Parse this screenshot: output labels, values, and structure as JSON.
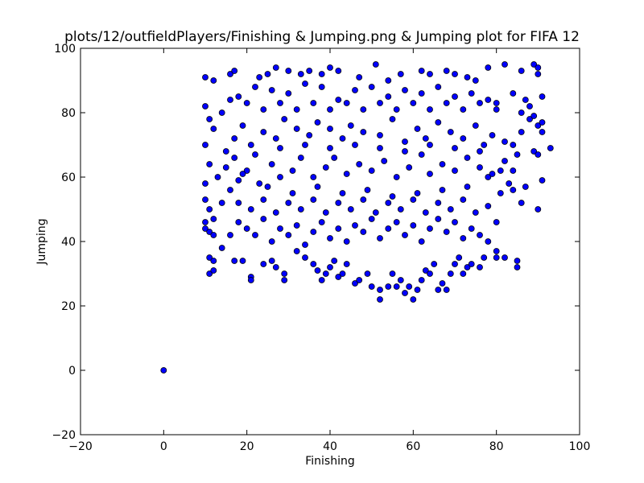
{
  "chart_data": {
    "type": "scatter",
    "title": "plots/12/outfieldPlayers/Finishing & Jumping.png & Jumping plot for FIFA 12",
    "xlabel": "Finishing",
    "ylabel": "Jumping",
    "xlim": [
      -20,
      100
    ],
    "ylim": [
      -20,
      100
    ],
    "xticks": [
      -20,
      0,
      20,
      40,
      60,
      80,
      100
    ],
    "yticks": [
      -20,
      0,
      20,
      40,
      60,
      80,
      100
    ],
    "xtick_labels": [
      "−20",
      "0",
      "20",
      "40",
      "60",
      "80",
      "100"
    ],
    "ytick_labels": [
      "−20",
      "0",
      "20",
      "40",
      "60",
      "80",
      "100"
    ],
    "grid": false,
    "marker_color": "#0000ff",
    "marker_edge_color": "#000000",
    "series": [
      {
        "points": [
          [
            0,
            0
          ],
          [
            10,
            91
          ],
          [
            12,
            90
          ],
          [
            16,
            92
          ],
          [
            17,
            93
          ],
          [
            23,
            91
          ],
          [
            25,
            92
          ],
          [
            27,
            94
          ],
          [
            30,
            93
          ],
          [
            33,
            92
          ],
          [
            35,
            93
          ],
          [
            38,
            92
          ],
          [
            40,
            94
          ],
          [
            42,
            93
          ],
          [
            47,
            91
          ],
          [
            51,
            95
          ],
          [
            54,
            90
          ],
          [
            57,
            92
          ],
          [
            62,
            93
          ],
          [
            64,
            92
          ],
          [
            68,
            93
          ],
          [
            70,
            92
          ],
          [
            73,
            91
          ],
          [
            75,
            90
          ],
          [
            78,
            94
          ],
          [
            82,
            95
          ],
          [
            86,
            93
          ],
          [
            89,
            95
          ],
          [
            90,
            94
          ],
          [
            90,
            92
          ],
          [
            10,
            82
          ],
          [
            11,
            78
          ],
          [
            12,
            75
          ],
          [
            14,
            80
          ],
          [
            18,
            85
          ],
          [
            22,
            88
          ],
          [
            26,
            87
          ],
          [
            30,
            86
          ],
          [
            34,
            89
          ],
          [
            38,
            88
          ],
          [
            42,
            84
          ],
          [
            46,
            87
          ],
          [
            50,
            88
          ],
          [
            54,
            85
          ],
          [
            58,
            87
          ],
          [
            62,
            86
          ],
          [
            66,
            88
          ],
          [
            70,
            85
          ],
          [
            74,
            86
          ],
          [
            78,
            84
          ],
          [
            80,
            83
          ],
          [
            84,
            86
          ],
          [
            86,
            80
          ],
          [
            88,
            78
          ],
          [
            91,
            74
          ],
          [
            90,
            76
          ],
          [
            93,
            69
          ],
          [
            91,
            85
          ],
          [
            10,
            70
          ],
          [
            11,
            64
          ],
          [
            13,
            60
          ],
          [
            15,
            68
          ],
          [
            17,
            72
          ],
          [
            19,
            76
          ],
          [
            21,
            70
          ],
          [
            24,
            74
          ],
          [
            27,
            72
          ],
          [
            29,
            78
          ],
          [
            32,
            75
          ],
          [
            35,
            73
          ],
          [
            37,
            77
          ],
          [
            40,
            75
          ],
          [
            43,
            72
          ],
          [
            45,
            76
          ],
          [
            48,
            74
          ],
          [
            52,
            73
          ],
          [
            55,
            78
          ],
          [
            58,
            71
          ],
          [
            61,
            75
          ],
          [
            63,
            72
          ],
          [
            66,
            77
          ],
          [
            69,
            74
          ],
          [
            72,
            72
          ],
          [
            75,
            76
          ],
          [
            77,
            70
          ],
          [
            79,
            73
          ],
          [
            82,
            71
          ],
          [
            84,
            70
          ],
          [
            85,
            67
          ],
          [
            89,
            68
          ],
          [
            90,
            67
          ],
          [
            10,
            58
          ],
          [
            10,
            53
          ],
          [
            11,
            50
          ],
          [
            12,
            47
          ],
          [
            14,
            52
          ],
          [
            16,
            56
          ],
          [
            18,
            59
          ],
          [
            20,
            62
          ],
          [
            23,
            58
          ],
          [
            26,
            64
          ],
          [
            28,
            60
          ],
          [
            31,
            62
          ],
          [
            33,
            66
          ],
          [
            36,
            60
          ],
          [
            39,
            63
          ],
          [
            41,
            66
          ],
          [
            44,
            61
          ],
          [
            47,
            64
          ],
          [
            50,
            62
          ],
          [
            53,
            65
          ],
          [
            56,
            60
          ],
          [
            59,
            63
          ],
          [
            62,
            67
          ],
          [
            64,
            61
          ],
          [
            67,
            64
          ],
          [
            70,
            62
          ],
          [
            73,
            66
          ],
          [
            76,
            63
          ],
          [
            78,
            60
          ],
          [
            81,
            62
          ],
          [
            83,
            58
          ],
          [
            87,
            57
          ],
          [
            91,
            59
          ],
          [
            86,
            52
          ],
          [
            90,
            50
          ],
          [
            80,
            46
          ],
          [
            10,
            46
          ],
          [
            10,
            44
          ],
          [
            11,
            43
          ],
          [
            12,
            42
          ],
          [
            14,
            38
          ],
          [
            16,
            42
          ],
          [
            18,
            46
          ],
          [
            20,
            44
          ],
          [
            22,
            42
          ],
          [
            24,
            47
          ],
          [
            26,
            40
          ],
          [
            28,
            44
          ],
          [
            30,
            42
          ],
          [
            32,
            45
          ],
          [
            34,
            39
          ],
          [
            36,
            43
          ],
          [
            38,
            46
          ],
          [
            40,
            41
          ],
          [
            42,
            44
          ],
          [
            44,
            40
          ],
          [
            46,
            45
          ],
          [
            48,
            43
          ],
          [
            50,
            47
          ],
          [
            52,
            41
          ],
          [
            54,
            44
          ],
          [
            56,
            46
          ],
          [
            58,
            42
          ],
          [
            60,
            45
          ],
          [
            62,
            40
          ],
          [
            64,
            44
          ],
          [
            66,
            47
          ],
          [
            68,
            43
          ],
          [
            70,
            46
          ],
          [
            72,
            41
          ],
          [
            74,
            44
          ],
          [
            76,
            42
          ],
          [
            78,
            40
          ],
          [
            11,
            35
          ],
          [
            12,
            34
          ],
          [
            11,
            30
          ],
          [
            12,
            31
          ],
          [
            17,
            34
          ],
          [
            19,
            34
          ],
          [
            21,
            29
          ],
          [
            21,
            28
          ],
          [
            24,
            33
          ],
          [
            26,
            34
          ],
          [
            27,
            32
          ],
          [
            29,
            30
          ],
          [
            29,
            28
          ],
          [
            32,
            37
          ],
          [
            34,
            35
          ],
          [
            36,
            33
          ],
          [
            37,
            31
          ],
          [
            38,
            28
          ],
          [
            39,
            30
          ],
          [
            40,
            32
          ],
          [
            41,
            34
          ],
          [
            42,
            29
          ],
          [
            43,
            30
          ],
          [
            44,
            33
          ],
          [
            46,
            27
          ],
          [
            47,
            28
          ],
          [
            49,
            30
          ],
          [
            50,
            26
          ],
          [
            52,
            22
          ],
          [
            52,
            25
          ],
          [
            54,
            26
          ],
          [
            55,
            30
          ],
          [
            56,
            26
          ],
          [
            57,
            28
          ],
          [
            58,
            24
          ],
          [
            59,
            26
          ],
          [
            60,
            22
          ],
          [
            61,
            25
          ],
          [
            62,
            28
          ],
          [
            63,
            31
          ],
          [
            64,
            30
          ],
          [
            65,
            33
          ],
          [
            66,
            25
          ],
          [
            67,
            27
          ],
          [
            68,
            25
          ],
          [
            69,
            30
          ],
          [
            70,
            33
          ],
          [
            71,
            35
          ],
          [
            72,
            30
          ],
          [
            73,
            32
          ],
          [
            74,
            33
          ],
          [
            76,
            32
          ],
          [
            77,
            35
          ],
          [
            80,
            35
          ],
          [
            80,
            37
          ],
          [
            82,
            35
          ],
          [
            85,
            34
          ],
          [
            85,
            32
          ],
          [
            15,
            63
          ],
          [
            17,
            66
          ],
          [
            19,
            61
          ],
          [
            22,
            67
          ],
          [
            25,
            57
          ],
          [
            28,
            69
          ],
          [
            31,
            55
          ],
          [
            34,
            70
          ],
          [
            37,
            57
          ],
          [
            40,
            69
          ],
          [
            43,
            55
          ],
          [
            46,
            70
          ],
          [
            49,
            56
          ],
          [
            52,
            69
          ],
          [
            55,
            54
          ],
          [
            58,
            68
          ],
          [
            61,
            55
          ],
          [
            64,
            70
          ],
          [
            67,
            56
          ],
          [
            70,
            69
          ],
          [
            73,
            57
          ],
          [
            76,
            68
          ],
          [
            79,
            61
          ],
          [
            82,
            65
          ],
          [
            84,
            62
          ],
          [
            86,
            74
          ],
          [
            88,
            82
          ],
          [
            87,
            84
          ],
          [
            89,
            79
          ],
          [
            91,
            77
          ],
          [
            16,
            84
          ],
          [
            20,
            83
          ],
          [
            24,
            81
          ],
          [
            28,
            83
          ],
          [
            32,
            81
          ],
          [
            36,
            83
          ],
          [
            40,
            81
          ],
          [
            44,
            83
          ],
          [
            48,
            81
          ],
          [
            52,
            83
          ],
          [
            56,
            81
          ],
          [
            60,
            83
          ],
          [
            64,
            81
          ],
          [
            68,
            83
          ],
          [
            72,
            81
          ],
          [
            76,
            83
          ],
          [
            80,
            81
          ],
          [
            18,
            52
          ],
          [
            21,
            50
          ],
          [
            24,
            53
          ],
          [
            27,
            49
          ],
          [
            30,
            52
          ],
          [
            33,
            50
          ],
          [
            36,
            53
          ],
          [
            39,
            49
          ],
          [
            42,
            52
          ],
          [
            45,
            50
          ],
          [
            48,
            53
          ],
          [
            51,
            49
          ],
          [
            54,
            52
          ],
          [
            57,
            50
          ],
          [
            60,
            53
          ],
          [
            63,
            49
          ],
          [
            66,
            52
          ],
          [
            69,
            50
          ],
          [
            72,
            53
          ],
          [
            75,
            49
          ],
          [
            78,
            51
          ],
          [
            81,
            55
          ],
          [
            84,
            56
          ]
        ]
      }
    ]
  }
}
